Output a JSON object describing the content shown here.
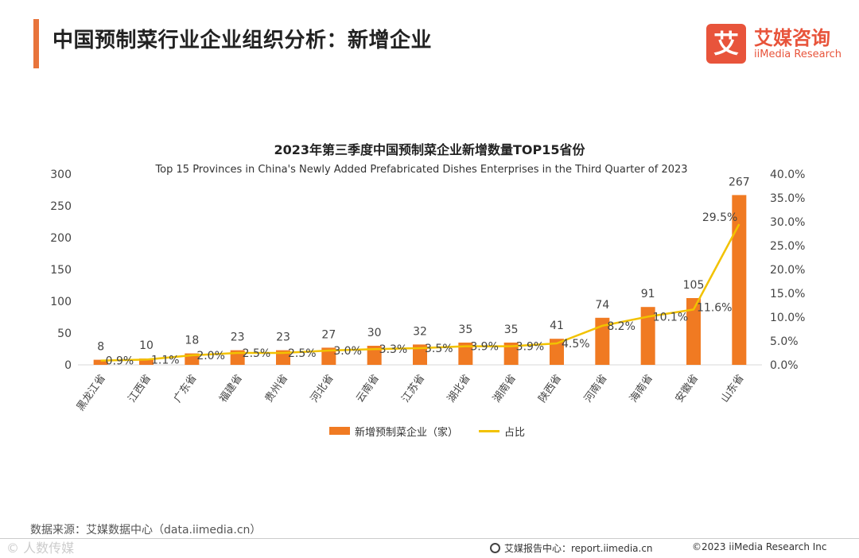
{
  "header": {
    "title": "中国预制菜行业企业组织分析：新增企业",
    "logo_mark": "艾",
    "logo_cn": "艾媒咨询",
    "logo_en": "iiMedia Research"
  },
  "chart_data": {
    "type": "bar+line",
    "title": "2023年第三季度中国预制菜企业新增数量TOP15省份",
    "subtitle": "Top 15 Provinces in China's Newly Added Prefabricated  Dishes Enterprises in the Third Quarter of 2023",
    "categories": [
      "黑龙江省",
      "江西省",
      "广东省",
      "福建省",
      "贵州省",
      "河北省",
      "云南省",
      "江苏省",
      "湖北省",
      "湖南省",
      "陕西省",
      "河南省",
      "海南省",
      "安徽省",
      "山东省"
    ],
    "series": [
      {
        "name": "新增预制菜企业（家）",
        "type": "bar",
        "axis": "left",
        "color": "#f07a22",
        "values": [
          8,
          10,
          18,
          23,
          23,
          27,
          30,
          32,
          35,
          35,
          41,
          74,
          91,
          105,
          267
        ],
        "labels": [
          "8",
          "10",
          "18",
          "23",
          "23",
          "27",
          "30",
          "32",
          "35",
          "35",
          "41",
          "74",
          "91",
          "105",
          "267"
        ]
      },
      {
        "name": "占比",
        "type": "line",
        "axis": "right",
        "color": "#f2c200",
        "values": [
          0.9,
          1.1,
          2.0,
          2.5,
          2.5,
          3.0,
          3.3,
          3.5,
          3.9,
          3.9,
          4.5,
          8.2,
          10.1,
          11.6,
          29.5
        ],
        "labels": [
          "0.9%",
          "1.1%",
          "2.0%",
          "2.5%",
          "2.5%",
          "3.0%",
          "3.3%",
          "3.5%",
          "3.9%",
          "3.9%",
          "4.5%",
          "8.2%",
          "10.1%",
          "11.6%",
          "29.5%"
        ]
      }
    ],
    "y_left": {
      "min": 0,
      "max": 300,
      "ticks": [
        0,
        50,
        100,
        150,
        200,
        250,
        300
      ],
      "tick_labels": [
        "0",
        "50",
        "100",
        "150",
        "200",
        "250",
        "300"
      ]
    },
    "y_right": {
      "min": 0,
      "max": 40,
      "ticks": [
        0,
        5,
        10,
        15,
        20,
        25,
        30,
        35,
        40
      ],
      "tick_labels": [
        "0.0%",
        "5.0%",
        "10.0%",
        "15.0%",
        "20.0%",
        "25.0%",
        "30.0%",
        "35.0%",
        "40.0%"
      ]
    },
    "grid": false,
    "legend": "bottom-center"
  },
  "legend": {
    "bar_label": "新增预制菜企业（家）",
    "line_label": "占比"
  },
  "source": "数据来源：艾媒数据中心（data.iimedia.cn）",
  "footer": {
    "watermark": "© 人数传媒",
    "report_text": "艾媒报告中心：report.iimedia.cn",
    "copyright": "©2023  iiMedia Research  Inc"
  }
}
